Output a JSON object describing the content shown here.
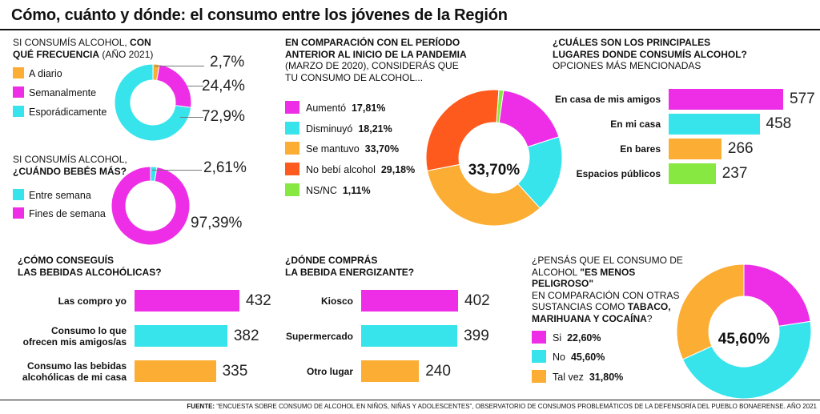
{
  "title": "Cómo, cuánto y dónde: el consumo entre los jóvenes de la Región",
  "colors": {
    "magenta": "#ee2ee6",
    "cyan": "#37e4ec",
    "orange": "#fbad34",
    "red": "#ff5a1e",
    "green": "#86e841"
  },
  "chart_data": [
    {
      "type": "pie",
      "title_line1": "SI CONSUMÍS ALCOHOL, ",
      "title_bold1": "CON",
      "title_bold2": "QUÉ FRECUENCIA",
      "title_rest": " (AÑO 2021)",
      "labels": [
        "A diario",
        "Semanalmente",
        "Esporádicamente"
      ],
      "values": [
        2.7,
        24.4,
        72.9
      ],
      "value_labels": [
        "2,7%",
        "24,4%",
        "72,9%"
      ]
    },
    {
      "type": "pie",
      "title_line1": "SI CONSUMÍS ALCOHOL,",
      "title_bold": "¿CUÁNDO BEBÉS MÁS?",
      "labels": [
        "Entre semana",
        "Fines de semana"
      ],
      "values": [
        2.61,
        97.39
      ],
      "value_labels": [
        "2,61%",
        "97,39%"
      ]
    },
    {
      "type": "pie",
      "title_bold": "EN COMPARACIÓN CON EL PERÍODO ANTERIOR AL INICIO DE LA PANDEMIA",
      "title_rest1": "(MARZO DE 2020), CONSIDERÁS QUE",
      "title_rest2": "TU CONSUMO DE ALCOHOL...",
      "labels": [
        "Aumentó",
        "Disminuyó",
        "Se mantuvo",
        "No bebí alcohol",
        "NS/NC"
      ],
      "values": [
        17.81,
        18.21,
        33.7,
        29.18,
        1.11
      ],
      "value_labels": [
        "17,81%",
        "18,21%",
        "33,70%",
        "29,18%",
        "1,11%"
      ],
      "center_label": "33,70%"
    },
    {
      "type": "bar",
      "title_line1": "¿CUÁLES SON LOS PRINCIPALES",
      "title_line2": "LUGARES DONDE CONSUMÍS ALCOHOL?",
      "subtitle": "OPCIONES MÁS MENCIONADAS",
      "categories": [
        "En casa de mis amigos",
        "En mi casa",
        "En bares",
        "Espacios públicos"
      ],
      "values": [
        577,
        458,
        266,
        237
      ],
      "value_labels": [
        "577",
        "458",
        "266",
        "237"
      ]
    },
    {
      "type": "bar",
      "title_line1": "¿CÓMO CONSEGUÍS",
      "title_line2": "LAS BEBIDAS ALCOHÓLICAS?",
      "categories": [
        [
          "Las compro yo"
        ],
        [
          "Consumo lo que",
          "ofrecen mis amigos/as"
        ],
        [
          "Consumo las bebidas",
          "alcohólicas de mi casa"
        ]
      ],
      "values": [
        432,
        382,
        335
      ],
      "value_labels": [
        "432",
        "382",
        "335"
      ]
    },
    {
      "type": "bar",
      "title_line1": "¿DÓNDE COMPRÁS",
      "title_line2": "LA BEBIDA ENERGIZANTE?",
      "categories": [
        "Kiosco",
        "Supermercado",
        "Otro lugar"
      ],
      "values": [
        402,
        399,
        240
      ],
      "value_labels": [
        "402",
        "399",
        "240"
      ]
    },
    {
      "type": "pie",
      "title_line1": "¿PENSÁS QUE EL CONSUMO DE",
      "title_line2a": "ALCOHOL ",
      "title_line2b": "\"ES MENOS PELIGROSO\"",
      "title_line3": "EN COMPARACIÓN CON OTRAS",
      "title_line4a": "SUSTANCIAS COMO ",
      "title_line4b": "TABACO,",
      "title_line5": "MARIHUANA Y COCAÍNA",
      "title_line5c": "?",
      "labels": [
        "Si",
        "No",
        "Tal vez"
      ],
      "values": [
        22.6,
        45.6,
        31.8
      ],
      "value_labels": [
        "22,60%",
        "45,60%",
        "31,80%"
      ],
      "center_label": "45,60%"
    }
  ],
  "source": {
    "label": "FUENTE:",
    "text": " “ENCUESTA SOBRE CONSUMO DE ALCOHOL EN NIÑOS, NIÑAS Y ADOLESCENTES”,  OBSERVATORIO DE CONSUMOS PROBLEMÁTICOS DE LA DEFENSORÍA DEL PUEBLO BONAERENSE. AÑO 2021"
  }
}
